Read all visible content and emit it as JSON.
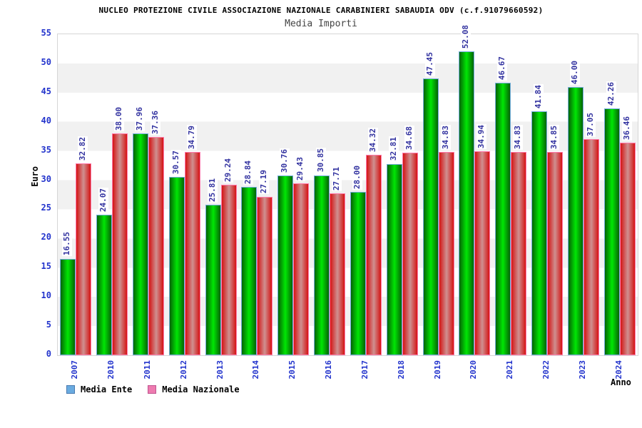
{
  "title": "NUCLEO PROTEZIONE CIVILE ASSOCIAZIONE NAZIONALE CARABINIERI SABAUDIA ODV (c.f.91079660592)",
  "subtitle": "Media Importi",
  "chart_data": {
    "type": "bar",
    "title": "Media Importi",
    "xlabel": "Anno",
    "ylabel": "Euro",
    "ylim": [
      0,
      55
    ],
    "yticks": [
      0,
      5,
      10,
      15,
      20,
      25,
      30,
      35,
      40,
      45,
      50,
      55
    ],
    "grid": "horizontal-bands",
    "legend_position": "bottom-left",
    "categories": [
      "2007",
      "2010",
      "2011",
      "2012",
      "2013",
      "2014",
      "2015",
      "2016",
      "2017",
      "2018",
      "2019",
      "2020",
      "2021",
      "2022",
      "2023",
      "2024"
    ],
    "series": [
      {
        "name": "Media Ente",
        "values": [
          16.55,
          24.07,
          37.96,
          30.57,
          25.81,
          28.84,
          30.76,
          30.85,
          28.0,
          32.81,
          47.45,
          52.08,
          46.67,
          41.84,
          46.0,
          42.26
        ],
        "legend_color": "#6aabe0",
        "legend_border": "#4a7ab0",
        "bar_border": "#74aede",
        "bar_edge_color": "#056405",
        "bar_center_color": "#00e604"
      },
      {
        "name": "Media Nazionale",
        "values": [
          32.82,
          38.0,
          37.36,
          34.79,
          29.24,
          27.19,
          29.43,
          27.71,
          34.32,
          34.68,
          34.83,
          34.94,
          34.83,
          34.85,
          37.05,
          36.46
        ],
        "legend_color": "#ee7bb0",
        "legend_border": "#c05590",
        "bar_border": "#ff7bac",
        "bar_edge_color": "#d41414",
        "bar_center_color": "#cf9090"
      }
    ]
  },
  "colors": {
    "tick_label": "#2233cc",
    "value_label": "#3333a0",
    "band_gray": "#f1f1f1",
    "plot_border": "#d6d6d6"
  }
}
